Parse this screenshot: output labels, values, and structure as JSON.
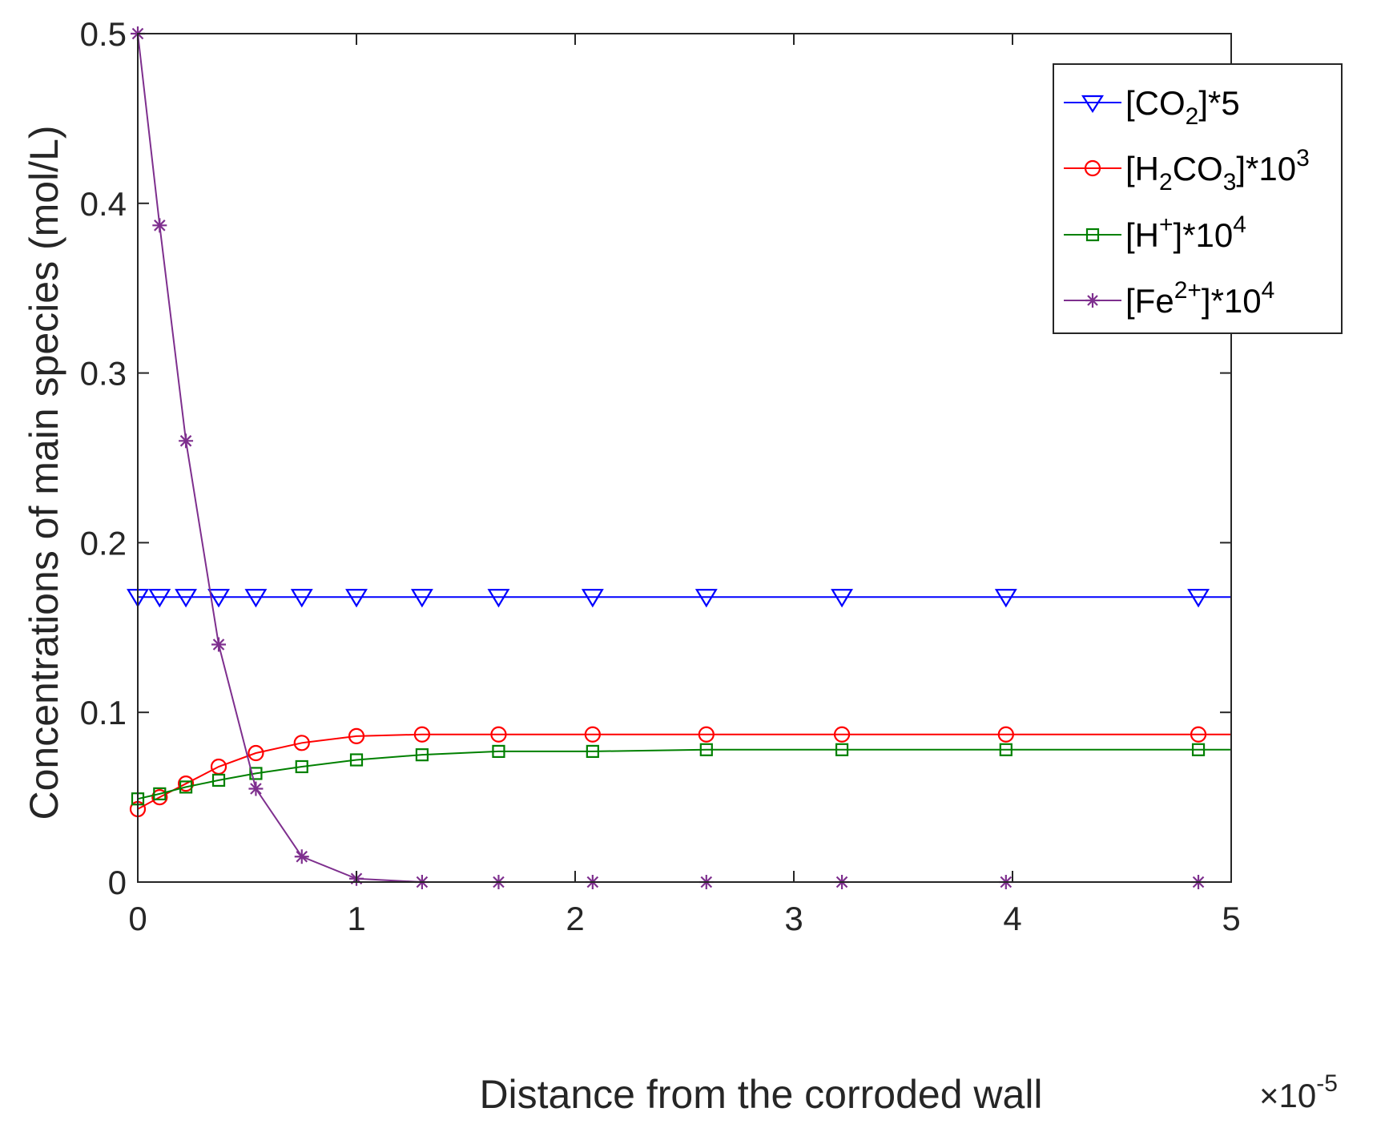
{
  "chart_data": {
    "type": "line",
    "xlabel": "Distance from the corroded wall",
    "ylabel": "Concentrations of main species (mol/L)",
    "x_exponent_label": {
      "base": "×10",
      "exponent": "-5"
    },
    "xlim": [
      0,
      5
    ],
    "ylim": [
      0,
      0.5
    ],
    "x_ticks": [
      "0",
      "1",
      "2",
      "3",
      "4",
      "5"
    ],
    "y_ticks": [
      "0",
      "0.1",
      "0.2",
      "0.3",
      "0.4",
      "0.5"
    ],
    "grid": false,
    "legend_position": "top-right",
    "x": [
      0,
      0.1,
      0.22,
      0.37,
      0.54,
      0.75,
      1.0,
      1.3,
      1.65,
      2.08,
      2.6,
      3.22,
      3.97,
      4.85,
      5.0
    ],
    "series": [
      {
        "name": "[CO2]*5",
        "legend": {
          "pre": "[CO",
          "sub": "2",
          "post": "]*5",
          "sup": "",
          "tail": ""
        },
        "color": "#0000ff",
        "marker": "triangle-down",
        "values": [
          0.168,
          0.168,
          0.168,
          0.168,
          0.168,
          0.168,
          0.168,
          0.168,
          0.168,
          0.168,
          0.168,
          0.168,
          0.168,
          0.168,
          0.168
        ]
      },
      {
        "name": "[H2CO3]*10^3",
        "legend": {
          "pre": "[H",
          "sub": "2",
          "mid": "CO",
          "sub2": "3",
          "post": "]*10",
          "sup": "3",
          "tail": ""
        },
        "color": "#ff0000",
        "marker": "circle",
        "values": [
          0.043,
          0.05,
          0.058,
          0.068,
          0.076,
          0.082,
          0.086,
          0.087,
          0.087,
          0.087,
          0.087,
          0.087,
          0.087,
          0.087,
          0.087
        ]
      },
      {
        "name": "[H+]*10^4",
        "legend": {
          "pre": "[H",
          "sup1": "+",
          "post": "]*10",
          "sup": "4",
          "tail": ""
        },
        "color": "#008000",
        "marker": "square",
        "values": [
          0.049,
          0.052,
          0.056,
          0.06,
          0.064,
          0.068,
          0.072,
          0.075,
          0.077,
          0.077,
          0.078,
          0.078,
          0.078,
          0.078,
          0.078
        ]
      },
      {
        "name": "[Fe2+]*10^4",
        "legend": {
          "pre": "[Fe",
          "sup1": "2+",
          "post": "]*10",
          "sup": "4",
          "tail": ""
        },
        "color": "#7e2f8e",
        "marker": "asterisk",
        "values": [
          0.5,
          0.387,
          0.26,
          0.14,
          0.055,
          0.015,
          0.002,
          0.0,
          0.0,
          0.0,
          0.0,
          0.0,
          0.0,
          0.0,
          0.0
        ]
      }
    ]
  }
}
